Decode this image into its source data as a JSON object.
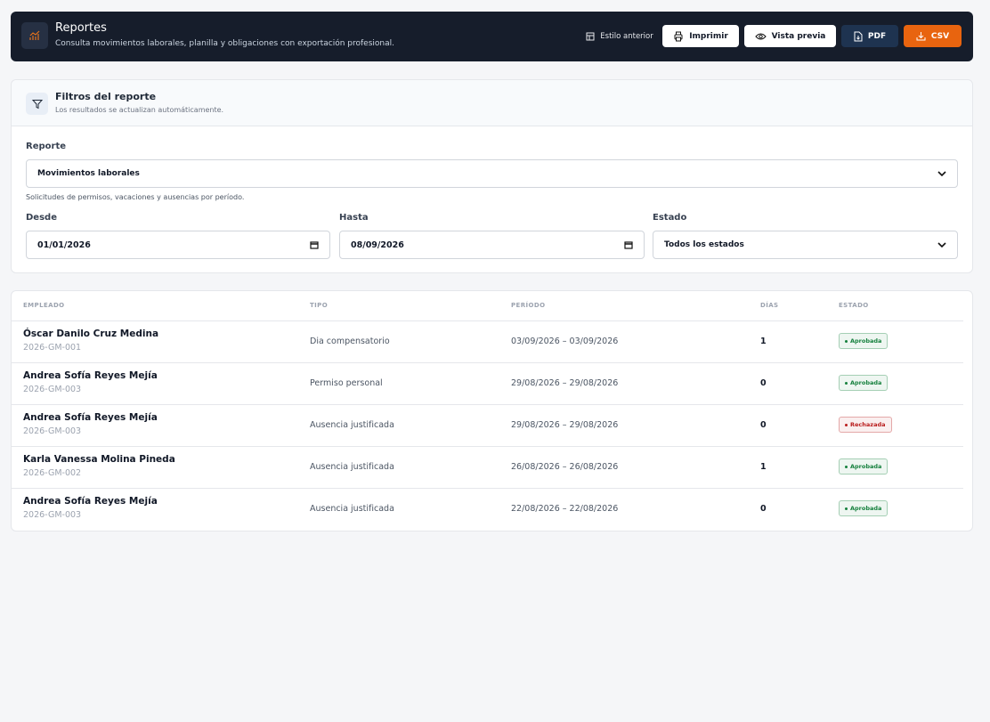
{
  "header": {
    "title": "Reportes",
    "subtitle": "Consulta movimientos laborales, planilla y obligaciones con exportación profesional.",
    "actions": {
      "legacy": "Estilo anterior",
      "print": "Imprimir",
      "preview": "Vista previa",
      "pdf": "PDF",
      "csv": "CSV"
    }
  },
  "filters": {
    "title": "Filtros del reporte",
    "subtitle": "Los resultados se actualizan automáticamente.",
    "report_label": "Reporte",
    "report_value": "Movimientos laborales",
    "report_hint": "Solicitudes de permisos, vacaciones y ausencias por período.",
    "from_label": "Desde",
    "from_value": "01/01/2026",
    "to_label": "Hasta",
    "to_value": "08/09/2026",
    "status_label": "Estado",
    "status_value": "Todos los estados"
  },
  "table": {
    "columns": [
      "EMPLEADO",
      "TIPO",
      "PERÍODO",
      "DÍAS",
      "ESTADO"
    ],
    "rows": [
      {
        "name": "Óscar Danilo Cruz Medina",
        "code": "2026-GM-001",
        "type": "Dia compensatorio",
        "period": "03/09/2026 – 03/09/2026",
        "days": 1,
        "status": "Aprobada",
        "status_color": "#15803d"
      },
      {
        "name": "Andrea Sofía Reyes Mejía",
        "code": "2026-GM-003",
        "type": "Permiso personal",
        "period": "29/08/2026 – 29/08/2026",
        "days": 0,
        "status": "Aprobada",
        "status_color": "#15803d"
      },
      {
        "name": "Andrea Sofía Reyes Mejía",
        "code": "2026-GM-003",
        "type": "Ausencia justificada",
        "period": "29/08/2026 – 29/08/2026",
        "days": 0,
        "status": "Rechazada",
        "status_color": "#b91c1c"
      },
      {
        "name": "Karla Vanessa Molina Pineda",
        "code": "2026-GM-002",
        "type": "Ausencia justificada",
        "period": "26/08/2026 – 26/08/2026",
        "days": 1,
        "status": "Aprobada",
        "status_color": "#15803d"
      },
      {
        "name": "Andrea Sofía Reyes Mejía",
        "code": "2026-GM-003",
        "type": "Ausencia justificada",
        "period": "22/08/2026 – 22/08/2026",
        "days": 0,
        "status": "Aprobada",
        "status_color": "#15803d"
      }
    ]
  }
}
